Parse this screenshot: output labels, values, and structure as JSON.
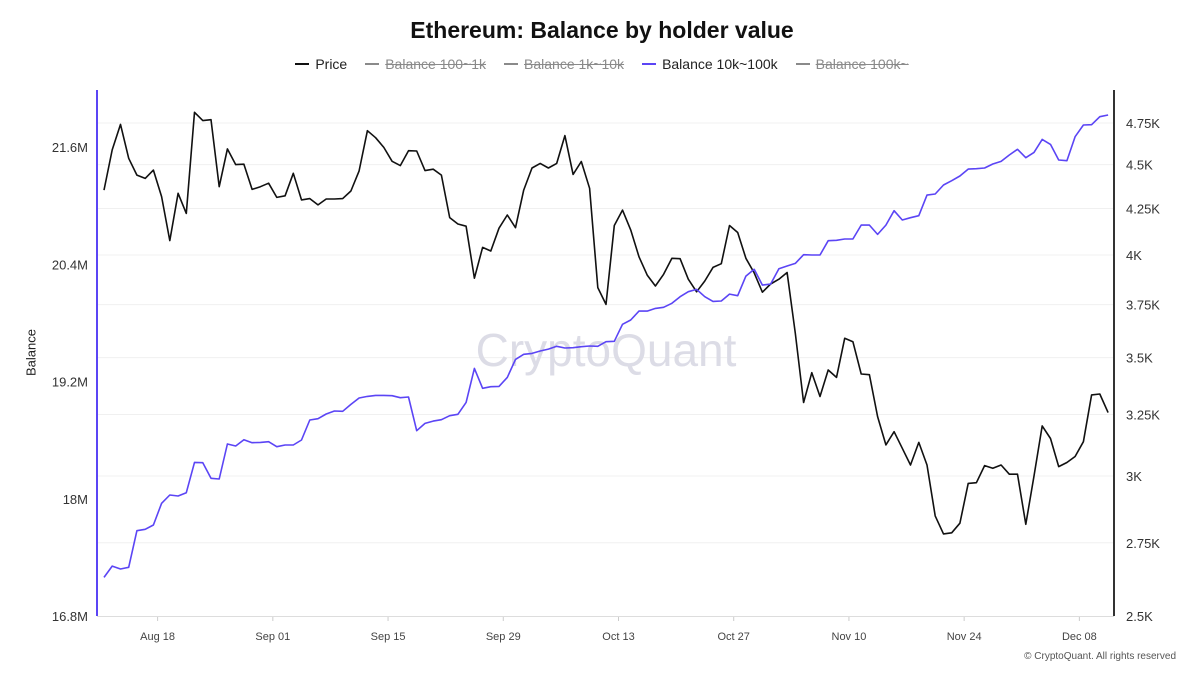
{
  "title": "Ethereum: Balance by holder value",
  "legend": [
    {
      "label": "Price",
      "color": "#111111",
      "visible": true
    },
    {
      "label": "Balance 100~1k",
      "color": "#8a8a8a",
      "visible": false
    },
    {
      "label": "Balance 1k~10k",
      "color": "#8a8a8a",
      "visible": false
    },
    {
      "label": "Balance 10k~100k",
      "color": "#5b45f5",
      "visible": true
    },
    {
      "label": "Balance 100k~",
      "color": "#8a8a8a",
      "visible": false
    }
  ],
  "watermark": "CryptoQuant",
  "copyright": "© CryptoQuant. All rights reserved",
  "chart_data": {
    "type": "line",
    "title": "Ethereum: Balance by holder value",
    "x": {
      "start": "Aug 11",
      "end": "Dec 11",
      "interval": "1 day"
    },
    "x_ticks": [
      "Aug 18",
      "Sep 01",
      "Sep 15",
      "Sep 29",
      "Oct 13",
      "Oct 27",
      "Nov 10",
      "Nov 24",
      "Dec 08"
    ],
    "y_left": {
      "label": "Balance",
      "unit": "M",
      "range": [
        16.8,
        22.2
      ],
      "ticks": [
        "16.8M",
        "18M",
        "19.2M",
        "20.4M",
        "21.6M"
      ],
      "tick_values": [
        16.8,
        18,
        19.2,
        20.4,
        21.6
      ],
      "color": "#5b45f5"
    },
    "y_right": {
      "label": "",
      "scale": "log",
      "range": [
        2500,
        5000
      ],
      "ticks": [
        "2.5K",
        "2.75K",
        "3K",
        "3.25K",
        "3.5K",
        "3.75K",
        "4K",
        "4.25K",
        "4.5K",
        "4.75K"
      ],
      "tick_values": [
        2500,
        2750,
        3000,
        3250,
        3500,
        3750,
        4000,
        4250,
        4500,
        4750
      ],
      "color": "#333333"
    },
    "grid": true,
    "legend_position": "top",
    "series": [
      {
        "name": "Price",
        "axis": "right",
        "color": "#111111",
        "values": [
          4353,
          4587,
          4742,
          4537,
          4439,
          4420,
          4468,
          4316,
          4076,
          4335,
          4223,
          4817,
          4765,
          4771,
          4372,
          4593,
          4500,
          4502,
          4357,
          4372,
          4392,
          4312,
          4321,
          4449,
          4298,
          4305,
          4270,
          4303,
          4303,
          4305,
          4348,
          4463,
          4703,
          4660,
          4602,
          4519,
          4494,
          4582,
          4580,
          4465,
          4473,
          4439,
          4200,
          4165,
          4153,
          3881,
          4040,
          4021,
          4142,
          4214,
          4145,
          4353,
          4480,
          4507,
          4480,
          4507,
          4673,
          4443,
          4518,
          4363,
          3834,
          3751,
          4157,
          4241,
          4133,
          3991,
          3897,
          3842,
          3901,
          3983,
          3981,
          3876,
          3813,
          3867,
          3936,
          3955,
          4157,
          4119,
          3983,
          3908,
          3811,
          3852,
          3876,
          3910,
          3613,
          3301,
          3432,
          3327,
          3444,
          3411,
          3589,
          3573,
          3426,
          3423,
          3241,
          3124,
          3178,
          3110,
          3043,
          3134,
          3043,
          2848,
          2782,
          2786,
          2821,
          2971,
          2974,
          3041,
          3030,
          3043,
          3007,
          3007,
          2817,
          3000,
          3202,
          3150,
          3037,
          3053,
          3077,
          3137,
          3334,
          3338,
          3258
        ]
      },
      {
        "name": "Balance 10k~100k",
        "axis": "left",
        "color": "#5b45f5",
        "values": [
          17.195,
          17.311,
          17.281,
          17.298,
          17.673,
          17.687,
          17.731,
          17.953,
          18.038,
          18.028,
          18.062,
          18.372,
          18.369,
          18.209,
          18.202,
          18.56,
          18.54,
          18.604,
          18.574,
          18.577,
          18.584,
          18.533,
          18.55,
          18.55,
          18.601,
          18.806,
          18.819,
          18.867,
          18.898,
          18.895,
          18.966,
          19.031,
          19.048,
          19.058,
          19.058,
          19.055,
          19.034,
          19.041,
          18.696,
          18.771,
          18.795,
          18.809,
          18.85,
          18.864,
          18.986,
          19.334,
          19.13,
          19.147,
          19.15,
          19.242,
          19.426,
          19.478,
          19.488,
          19.512,
          19.532,
          19.56,
          19.543,
          19.546,
          19.556,
          19.563,
          19.56,
          19.607,
          19.611,
          19.785,
          19.829,
          19.921,
          19.921,
          19.948,
          19.959,
          20.0,
          20.068,
          20.119,
          20.143,
          20.068,
          20.02,
          20.024,
          20.095,
          20.078,
          20.279,
          20.348,
          20.187,
          20.197,
          20.354,
          20.382,
          20.409,
          20.498,
          20.495,
          20.495,
          20.641,
          20.645,
          20.658,
          20.658,
          20.801,
          20.801,
          20.706,
          20.801,
          20.948,
          20.853,
          20.876,
          20.897,
          21.108,
          21.119,
          21.211,
          21.255,
          21.303,
          21.374,
          21.378,
          21.385,
          21.426,
          21.453,
          21.518,
          21.576,
          21.49,
          21.545,
          21.678,
          21.627,
          21.467,
          21.46,
          21.705,
          21.825,
          21.828,
          21.91,
          21.927
        ]
      }
    ]
  }
}
